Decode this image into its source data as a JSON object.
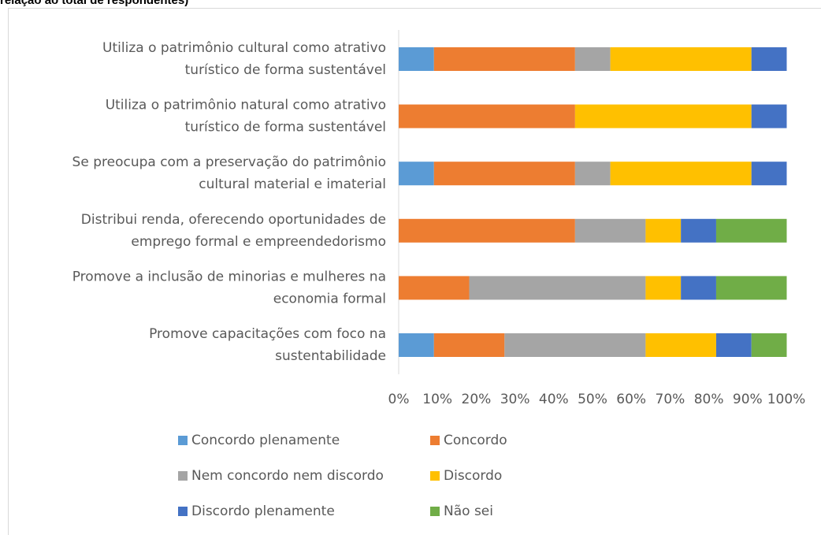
{
  "chart_data": {
    "type": "stacked_barh",
    "title": "relação ao total de respondentes)",
    "categories": [
      [
        "Utiliza o patrimônio cultural como atrativo",
        "turístico de forma sustentável"
      ],
      [
        "Utiliza o patrimônio natural como atrativo",
        "turístico de forma sustentável"
      ],
      [
        "Se preocupa com a preservação do patrimônio",
        "cultural material e imaterial"
      ],
      [
        "Distribui renda, oferecendo oportunidades de",
        "emprego formal e empreendedorismo"
      ],
      [
        "Promove a inclusão de minorias e mulheres na",
        "economia formal"
      ],
      [
        "Promove capacitações com foco na",
        "sustentabilidade"
      ]
    ],
    "series": [
      {
        "name": "Concordo plenamente",
        "color": "#5b9bd5",
        "values": [
          9.1,
          0,
          9.1,
          0,
          0,
          9.1
        ]
      },
      {
        "name": "Concordo",
        "color": "#ed7d31",
        "values": [
          36.4,
          45.5,
          36.4,
          45.5,
          18.2,
          18.2
        ]
      },
      {
        "name": "Nem concordo nem discordo",
        "color": "#a5a5a5",
        "values": [
          9.1,
          0,
          9.1,
          18.2,
          45.5,
          36.4
        ]
      },
      {
        "name": "Discordo",
        "color": "#ffc000",
        "values": [
          36.4,
          45.5,
          36.4,
          9.1,
          9.1,
          18.2
        ]
      },
      {
        "name": "Discordo plenamente",
        "color": "#4472c4",
        "values": [
          9.1,
          9.1,
          9.1,
          9.1,
          9.1,
          9.1
        ]
      },
      {
        "name": "Não sei",
        "color": "#70ad47",
        "values": [
          0,
          0,
          0,
          18.2,
          18.2,
          9.1
        ]
      }
    ],
    "xlim": [
      0,
      100
    ],
    "xticks": [
      {
        "value": 0,
        "label": "0%"
      },
      {
        "value": 10,
        "label": "10%"
      },
      {
        "value": 20,
        "label": "20%"
      },
      {
        "value": 30,
        "label": "30%"
      },
      {
        "value": 40,
        "label": "40%"
      },
      {
        "value": 50,
        "label": "50%"
      },
      {
        "value": 60,
        "label": "60%"
      },
      {
        "value": 70,
        "label": "70%"
      },
      {
        "value": 80,
        "label": "80%"
      },
      {
        "value": 90,
        "label": "90%"
      },
      {
        "value": 100,
        "label": "100%"
      }
    ],
    "grid": false,
    "legend": "bottom"
  }
}
